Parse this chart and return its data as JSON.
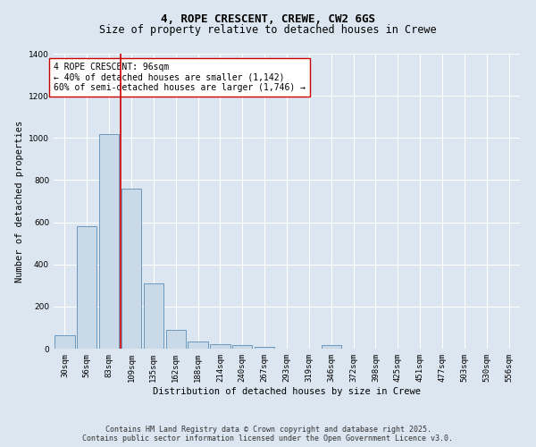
{
  "title": "4, ROPE CRESCENT, CREWE, CW2 6GS",
  "subtitle": "Size of property relative to detached houses in Crewe",
  "xlabel": "Distribution of detached houses by size in Crewe",
  "ylabel": "Number of detached properties",
  "bar_labels": [
    "30sqm",
    "56sqm",
    "83sqm",
    "109sqm",
    "135sqm",
    "162sqm",
    "188sqm",
    "214sqm",
    "240sqm",
    "267sqm",
    "293sqm",
    "319sqm",
    "346sqm",
    "372sqm",
    "398sqm",
    "425sqm",
    "451sqm",
    "477sqm",
    "503sqm",
    "530sqm",
    "556sqm"
  ],
  "bar_values": [
    65,
    580,
    1020,
    760,
    310,
    90,
    35,
    20,
    15,
    10,
    0,
    0,
    15,
    0,
    0,
    0,
    0,
    0,
    0,
    0,
    0
  ],
  "bar_color": "#c9d9e8",
  "bar_edge_color": "#5b8db8",
  "vline_x": 2.5,
  "vline_color": "#cc0000",
  "annotation_text": "4 ROPE CRESCENT: 96sqm\n← 40% of detached houses are smaller (1,142)\n60% of semi-detached houses are larger (1,746) →",
  "annotation_box_color": "#ffffff",
  "annotation_box_edge": "#cc0000",
  "ylim": [
    0,
    1400
  ],
  "yticks": [
    0,
    200,
    400,
    600,
    800,
    1000,
    1200,
    1400
  ],
  "background_color": "#dce6f0",
  "plot_bg_color": "#dce6f0",
  "footer_line1": "Contains HM Land Registry data © Crown copyright and database right 2025.",
  "footer_line2": "Contains public sector information licensed under the Open Government Licence v3.0.",
  "title_fontsize": 9,
  "xlabel_fontsize": 7.5,
  "ylabel_fontsize": 7.5,
  "tick_fontsize": 6.5,
  "annotation_fontsize": 7,
  "footer_fontsize": 6
}
